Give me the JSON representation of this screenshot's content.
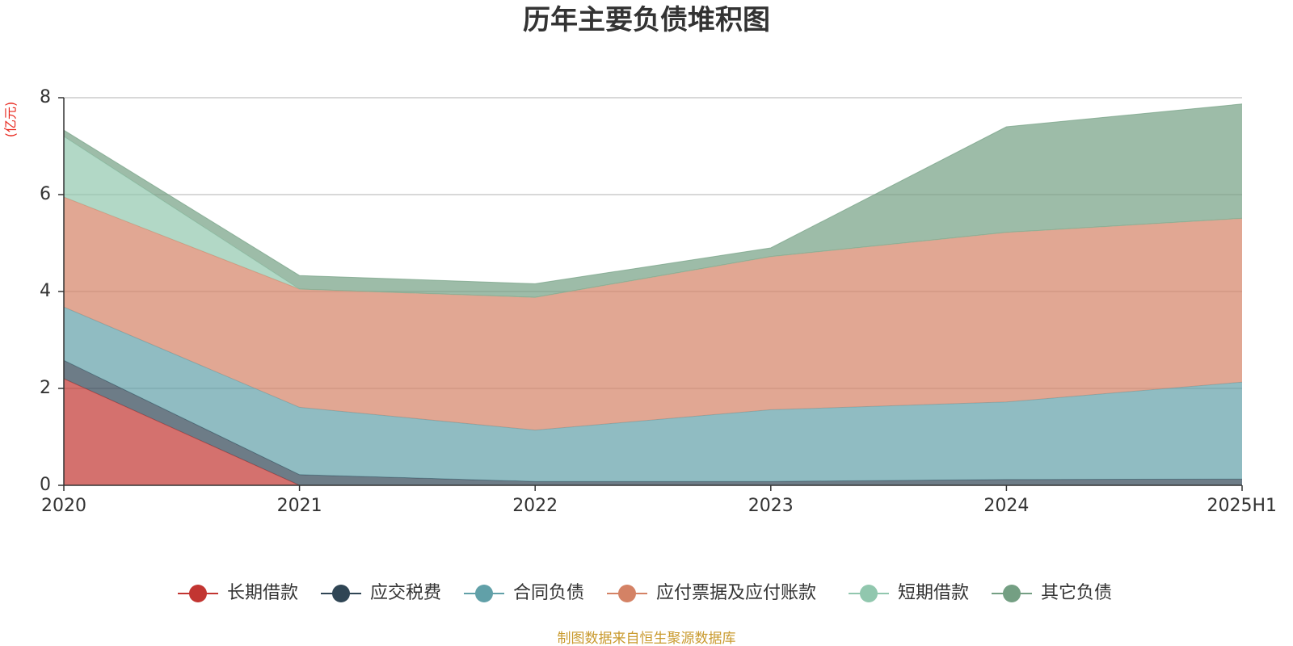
{
  "chart_data": {
    "type": "area",
    "stacked": true,
    "title": "历年主要负债堆积图",
    "ylabel": "(亿元)",
    "xlabel": "",
    "categories": [
      "2020",
      "2021",
      "2022",
      "2023",
      "2024",
      "2025H1"
    ],
    "ylim": [
      0,
      8
    ],
    "yticks": [
      0,
      2,
      4,
      6,
      8
    ],
    "grid": true,
    "legend_position": "bottom",
    "series": [
      {
        "name": "长期借款",
        "color": "#c23531",
        "values": [
          2.2,
          0.0,
          0.0,
          0.0,
          0.0,
          0.0
        ]
      },
      {
        "name": "应交税费",
        "color": "#2f4554",
        "values": [
          0.38,
          0.22,
          0.08,
          0.08,
          0.12,
          0.13
        ]
      },
      {
        "name": "合同负债",
        "color": "#61a0a8",
        "values": [
          1.1,
          1.39,
          1.06,
          1.48,
          1.6,
          2.0
        ]
      },
      {
        "name": "应付票据及应付账款",
        "color": "#d48265",
        "values": [
          2.27,
          2.44,
          2.74,
          3.16,
          3.5,
          3.38
        ]
      },
      {
        "name": "短期借款",
        "color": "#91c7ae",
        "values": [
          1.25,
          0.0,
          0.0,
          0.0,
          0.0,
          0.0
        ]
      },
      {
        "name": "其它负债",
        "color": "#749f83",
        "values": [
          0.13,
          0.28,
          0.28,
          0.18,
          2.18,
          2.36
        ]
      }
    ],
    "source_note": "制图数据来自恒生聚源数据库"
  }
}
